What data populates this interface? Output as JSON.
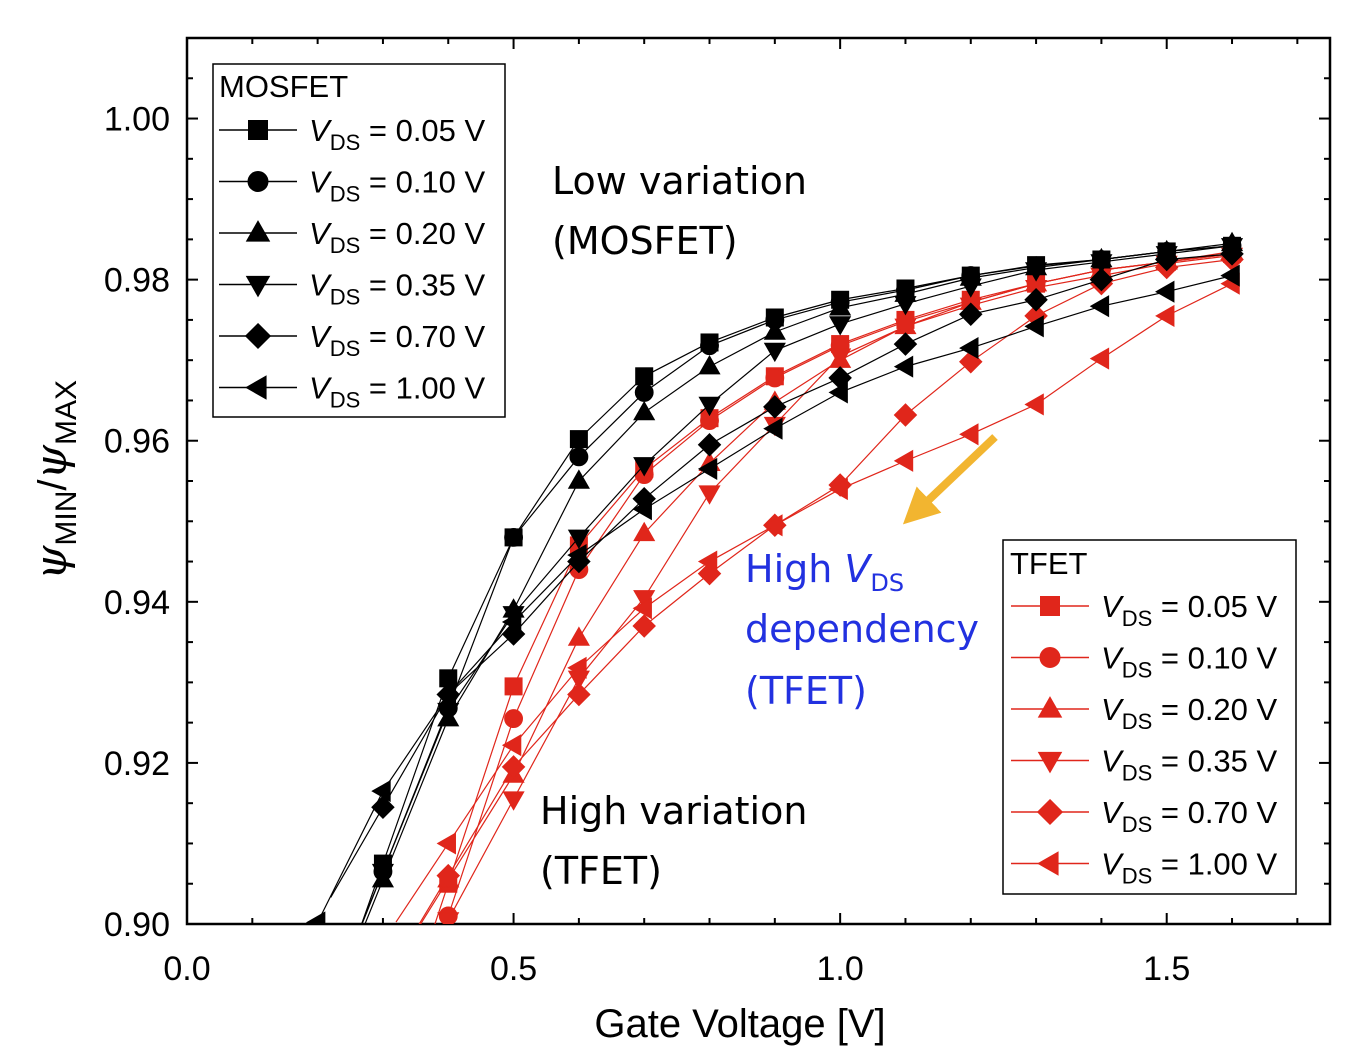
{
  "chart_data": {
    "type": "line",
    "xlabel": "Gate Voltage [V]",
    "ylabel": {
      "base1": "ψ",
      "sub1": "MIN",
      "sep": "/",
      "base2": "ψ",
      "sub2": "MAX"
    },
    "xlim": [
      0.0,
      1.75
    ],
    "ylim": [
      0.9,
      1.01
    ],
    "xticks": [
      "0.0",
      "0.5",
      "1.0",
      "1.5"
    ],
    "xtick_values": [
      0.0,
      0.5,
      1.0,
      1.5
    ],
    "yticks": [
      "0.90",
      "0.92",
      "0.94",
      "0.96",
      "0.98",
      "1.00"
    ],
    "ytick_values": [
      0.9,
      0.92,
      0.94,
      0.96,
      0.98,
      1.0
    ],
    "grid": false,
    "legends": [
      {
        "title": "MOSFET",
        "placement": "top-left"
      },
      {
        "title": "TFET",
        "placement": "bottom-right"
      }
    ],
    "legend_label": {
      "var": "V",
      "sub": "DS",
      "eq": " = "
    },
    "colors": {
      "mosfet": "#000000",
      "tfet": "#e0261b"
    },
    "annotations": {
      "low": {
        "line1": "Low variation",
        "line2": "(MOSFET)",
        "color": "#000000"
      },
      "high_var": {
        "line1": "High variation",
        "line2": "(TFET)",
        "color": "#000000"
      },
      "high_vds": {
        "line1a": "High ",
        "line1b": "V",
        "line1c": "DS",
        "line2": "dependency",
        "line3": "(TFET)",
        "color": "#2231e0"
      },
      "arrow_color": "#f2b530"
    },
    "series": [
      {
        "name": "0.05 V",
        "group": "MOSFET",
        "marker": "square",
        "x": [
          0.3,
          0.4,
          0.5,
          0.6,
          0.7,
          0.8,
          0.9,
          1.0,
          1.1,
          1.2,
          1.3,
          1.4,
          1.5,
          1.6
        ],
        "y": [
          0.9075,
          0.9305,
          0.948,
          0.9602,
          0.968,
          0.9722,
          0.9753,
          0.9775,
          0.9789,
          0.9805,
          0.9818,
          0.9825,
          0.9835,
          0.9842
        ]
      },
      {
        "name": "0.10 V",
        "group": "MOSFET",
        "marker": "circle",
        "x": [
          0.3,
          0.4,
          0.5,
          0.6,
          0.7,
          0.8,
          0.9,
          1.0,
          1.1,
          1.2,
          1.3,
          1.4,
          1.5,
          1.6
        ],
        "y": [
          0.9065,
          0.9268,
          0.948,
          0.958,
          0.966,
          0.9718,
          0.975,
          0.9772,
          0.9787,
          0.9805,
          0.9817,
          0.9825,
          0.9835,
          0.9842
        ]
      },
      {
        "name": "0.20 V",
        "group": "MOSFET",
        "marker": "triangle-up",
        "x": [
          0.3,
          0.4,
          0.5,
          0.6,
          0.7,
          0.8,
          0.9,
          1.0,
          1.1,
          1.2,
          1.3,
          1.4,
          1.5,
          1.6
        ],
        "y": [
          0.9055,
          0.9255,
          0.939,
          0.955,
          0.9635,
          0.9692,
          0.9735,
          0.9765,
          0.9782,
          0.9802,
          0.9815,
          0.9825,
          0.9835,
          0.9845
        ]
      },
      {
        "name": "0.35 V",
        "group": "MOSFET",
        "marker": "triangle-down",
        "x": [
          0.3,
          0.4,
          0.5,
          0.6,
          0.7,
          0.8,
          0.9,
          1.0,
          1.1,
          1.2,
          1.3,
          1.4,
          1.5,
          1.6
        ],
        "y": [
          0.9065,
          0.9265,
          0.9385,
          0.948,
          0.957,
          0.9645,
          0.9712,
          0.9745,
          0.977,
          0.9792,
          0.9812,
          0.9822,
          0.9832,
          0.9842
        ]
      },
      {
        "name": "0.70 V",
        "group": "MOSFET",
        "marker": "diamond",
        "x": [
          0.3,
          0.4,
          0.5,
          0.6,
          0.7,
          0.8,
          0.9,
          1.0,
          1.1,
          1.2,
          1.3,
          1.4,
          1.5,
          1.6
        ],
        "y": [
          0.9145,
          0.9285,
          0.936,
          0.945,
          0.9528,
          0.9595,
          0.9642,
          0.9678,
          0.972,
          0.9757,
          0.9775,
          0.98,
          0.9825,
          0.9832
        ]
      },
      {
        "name": "1.00 V",
        "group": "MOSFET",
        "marker": "triangle-left",
        "x": [
          0.2,
          0.3,
          0.4,
          0.5,
          0.6,
          0.7,
          0.8,
          0.9,
          1.0,
          1.1,
          1.2,
          1.3,
          1.4,
          1.5,
          1.6
        ],
        "y": [
          0.9002,
          0.9165,
          0.9285,
          0.9375,
          0.9458,
          0.9515,
          0.9565,
          0.9615,
          0.966,
          0.9692,
          0.9715,
          0.9742,
          0.9767,
          0.9785,
          0.9805
        ]
      },
      {
        "name": "0.05 V",
        "group": "TFET",
        "marker": "square",
        "x": [
          0.4,
          0.5,
          0.6,
          0.7,
          0.8,
          0.9,
          1.0,
          1.1,
          1.2,
          1.3,
          1.4,
          1.5,
          1.6
        ],
        "y": [
          0.905,
          0.9295,
          0.947,
          0.9565,
          0.9628,
          0.968,
          0.972,
          0.975,
          0.9775,
          0.9795,
          0.9812,
          0.9822,
          0.9832
        ]
      },
      {
        "name": "0.10 V",
        "group": "TFET",
        "marker": "circle",
        "x": [
          0.4,
          0.5,
          0.6,
          0.7,
          0.8,
          0.9,
          1.0,
          1.1,
          1.2,
          1.3,
          1.4,
          1.5,
          1.6
        ],
        "y": [
          0.901,
          0.9255,
          0.944,
          0.9558,
          0.9625,
          0.9678,
          0.9718,
          0.9748,
          0.9772,
          0.9795,
          0.9812,
          0.9822,
          0.9832
        ]
      },
      {
        "name": "0.20 V",
        "group": "TFET",
        "marker": "triangle-up",
        "x": [
          0.4,
          0.5,
          0.6,
          0.7,
          0.8,
          0.9,
          1.0,
          1.1,
          1.2,
          1.3,
          1.4,
          1.5,
          1.6
        ],
        "y": [
          0.9055,
          0.9185,
          0.9355,
          0.9485,
          0.9572,
          0.9648,
          0.97,
          0.9742,
          0.9772,
          0.9795,
          0.9812,
          0.9822,
          0.9835
        ]
      },
      {
        "name": "0.35 V",
        "group": "TFET",
        "marker": "triangle-down",
        "x": [
          0.4,
          0.5,
          0.6,
          0.7,
          0.8,
          0.9,
          1.0,
          1.1,
          1.2,
          1.3,
          1.4,
          1.5,
          1.6
        ],
        "y": [
          0.9005,
          0.9155,
          0.9305,
          0.9405,
          0.9535,
          0.962,
          0.9705,
          0.9742,
          0.9768,
          0.979,
          0.9805,
          0.982,
          0.983
        ]
      },
      {
        "name": "0.70 V",
        "group": "TFET",
        "marker": "diamond",
        "x": [
          0.4,
          0.5,
          0.6,
          0.7,
          0.8,
          0.9,
          1.0,
          1.1,
          1.2,
          1.3,
          1.4,
          1.5,
          1.6
        ],
        "y": [
          0.906,
          0.9195,
          0.9285,
          0.937,
          0.9435,
          0.9495,
          0.9545,
          0.9632,
          0.9698,
          0.9755,
          0.9795,
          0.9815,
          0.9825
        ]
      },
      {
        "name": "1.00 V",
        "group": "TFET",
        "marker": "triangle-left",
        "x": [
          0.4,
          0.5,
          0.6,
          0.7,
          0.8,
          0.9,
          1.0,
          1.1,
          1.2,
          1.3,
          1.4,
          1.5,
          1.6
        ],
        "y": [
          0.91,
          0.9222,
          0.9318,
          0.9392,
          0.945,
          0.9495,
          0.954,
          0.9575,
          0.9608,
          0.9645,
          0.9702,
          0.9755,
          0.9795
        ]
      }
    ]
  }
}
